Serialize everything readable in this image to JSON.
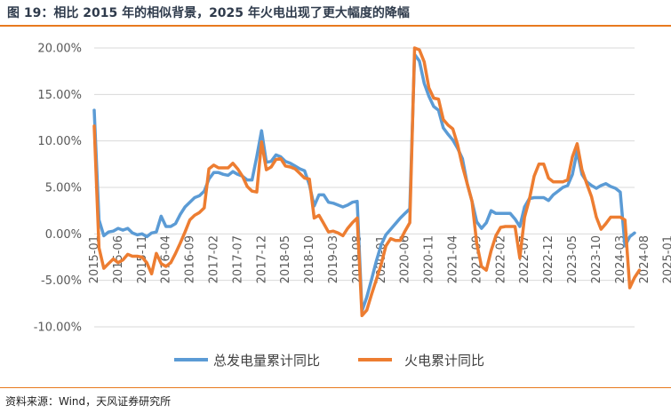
{
  "title": "图 19：相比 2015 年的相似背景，2025 年火电出现了更大幅度的降幅",
  "source": "资料来源：Wind，天风证券研究所",
  "colors": {
    "accent": "#e87a1e",
    "series1": "#5b9bd5",
    "series2": "#ed7d31"
  },
  "chart_data": {
    "type": "line",
    "title": "",
    "xlabel": "",
    "ylabel": "",
    "ylim": [
      -10,
      20
    ],
    "yticks": [
      -10,
      -5,
      0,
      5,
      10,
      15,
      20
    ],
    "ytick_labels": [
      "-10.00%",
      "-5.00%",
      "0.00%",
      "5.00%",
      "10.00%",
      "15.00%",
      "20.00%"
    ],
    "xticks": [
      "2015-01",
      "2015-06",
      "2015-11",
      "2016-04",
      "2016-09",
      "2017-02",
      "2017-07",
      "2017-12",
      "2018-05",
      "2018-10",
      "2019-03",
      "2019-08",
      "2020-01",
      "2020-06",
      "2020-11",
      "2021-04",
      "2021-09",
      "2022-02",
      "2022-07",
      "2022-12",
      "2023-05",
      "2023-10",
      "2024-03",
      "2024-08",
      "2025-01"
    ],
    "x_start": "2015-01",
    "grid": true,
    "legend": "bottom",
    "series": [
      {
        "name": "总发电量累计同比",
        "values": [
          13.3,
          1.5,
          -0.2,
          0.2,
          0.3,
          0.6,
          0.4,
          0.6,
          0.1,
          -0.1,
          0.0,
          -0.3,
          0.1,
          0.2,
          1.9,
          0.8,
          0.8,
          1.1,
          2.1,
          2.9,
          3.4,
          3.9,
          4.1,
          4.6,
          5.9,
          6.6,
          6.6,
          6.4,
          6.3,
          6.7,
          6.4,
          6.2,
          5.8,
          5.8,
          8.3,
          11.1,
          7.7,
          7.8,
          8.5,
          8.3,
          7.8,
          7.6,
          7.3,
          7.0,
          6.8,
          5.3,
          3.0,
          4.2,
          4.2,
          3.4,
          3.3,
          3.1,
          2.9,
          3.1,
          3.4,
          3.5,
          -8.3,
          -6.8,
          -4.9,
          -2.9,
          -1.2,
          -0.1,
          0.5,
          1.1,
          1.7,
          2.2,
          2.7,
          19.3,
          18.6,
          16.2,
          14.8,
          13.7,
          13.3,
          11.4,
          10.7,
          10.1,
          9.2,
          8.1,
          5.4,
          3.5,
          1.3,
          0.6,
          1.2,
          2.5,
          2.2,
          2.2,
          2.2,
          2.2,
          1.6,
          0.8,
          2.9,
          3.8,
          3.9,
          3.9,
          3.9,
          3.6,
          4.2,
          4.6,
          5.0,
          5.2,
          6.4,
          8.9,
          6.4,
          5.6,
          5.2,
          4.9,
          5.2,
          5.4,
          5.1,
          4.9,
          4.5,
          -1.3,
          -0.3,
          0.1
        ]
      },
      {
        "name": "火电累计同比",
        "values": [
          11.6,
          -1.5,
          -3.7,
          -3.2,
          -2.7,
          -3.1,
          -2.8,
          -2.2,
          -2.4,
          -2.4,
          -2.5,
          -3.1,
          -4.3,
          -2.1,
          -3.2,
          -3.5,
          -3.1,
          -2.1,
          -1.0,
          0.2,
          1.5,
          2.0,
          2.3,
          2.8,
          7.0,
          7.4,
          7.1,
          7.1,
          7.1,
          7.6,
          7.0,
          6.2,
          5.1,
          4.6,
          4.5,
          9.9,
          6.9,
          7.2,
          8.0,
          8.1,
          7.3,
          7.2,
          7.0,
          6.5,
          6.0,
          5.9,
          1.7,
          2.0,
          1.1,
          0.2,
          0.3,
          0.1,
          -0.2,
          0.6,
          1.2,
          1.7,
          -8.8,
          -8.2,
          -6.5,
          -4.9,
          -3.3,
          -1.3,
          -0.5,
          -0.7,
          -0.7,
          0.3,
          1.2,
          20.0,
          19.8,
          18.5,
          15.7,
          14.6,
          14.5,
          12.3,
          11.7,
          11.3,
          9.6,
          7.3,
          5.4,
          3.5,
          -1.0,
          -3.5,
          -3.9,
          -1.8,
          -0.2,
          0.7,
          0.8,
          0.8,
          0.8,
          -2.6,
          1.8,
          3.7,
          6.2,
          7.5,
          7.5,
          6.0,
          5.6,
          5.6,
          5.6,
          5.8,
          8.3,
          9.7,
          6.9,
          5.4,
          4.0,
          1.8,
          0.5,
          1.1,
          1.8,
          1.8,
          1.8,
          1.5,
          -5.8,
          -4.7,
          -3.9
        ]
      }
    ]
  }
}
